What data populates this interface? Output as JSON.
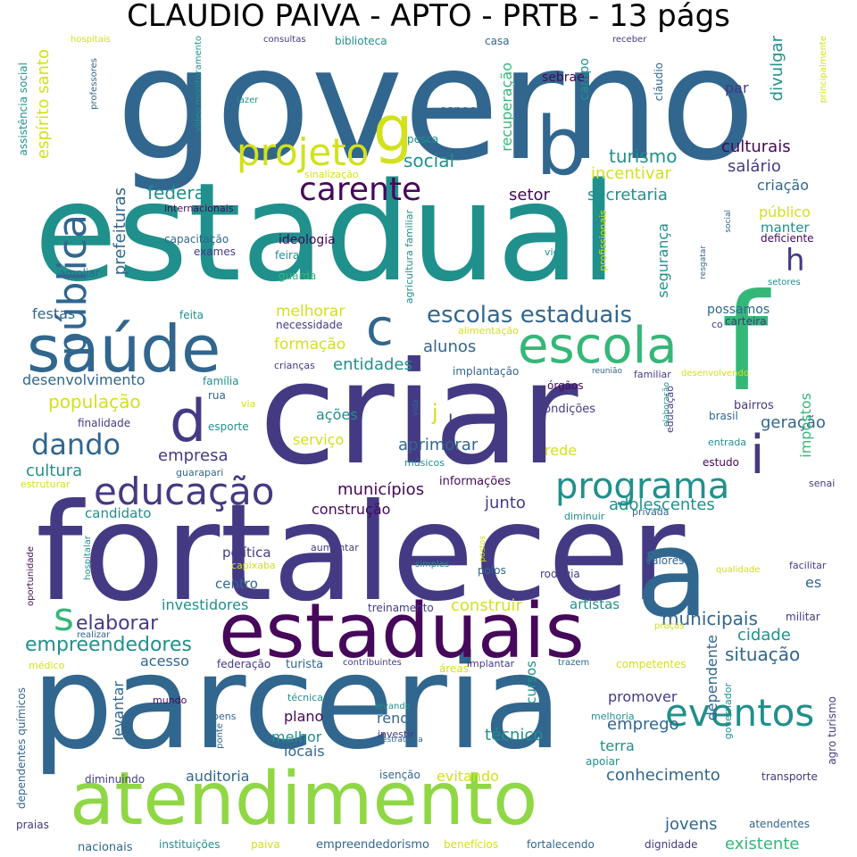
{
  "title": "CLAUDIO PAIVA - APTO - PRTB - 13 págs",
  "palette": {
    "purple": "#46085a",
    "indigo": "#443a84",
    "blue": "#31668e",
    "teal": "#20908c",
    "green": "#35b778",
    "lime": "#8fd744",
    "yellow": "#d2e11b"
  },
  "words": [
    {
      "text": "governo",
      "color": "#31668e"
    },
    {
      "text": "estadual",
      "color": "#20908c"
    },
    {
      "text": "criar",
      "color": "#443a84"
    },
    {
      "text": "fortalecer",
      "color": "#443a84"
    },
    {
      "text": "parceria",
      "color": "#31668e"
    },
    {
      "text": "estaduais",
      "color": "#46085a"
    },
    {
      "text": "atendimento",
      "color": "#8fd744"
    },
    {
      "text": "saúde",
      "color": "#31668e"
    },
    {
      "text": "escola",
      "color": "#35b778"
    },
    {
      "text": "f",
      "color": "#35b778"
    },
    {
      "text": "b",
      "color": "#31668e"
    },
    {
      "text": "g",
      "color": "#d2e11b"
    },
    {
      "text": "projeto",
      "color": "#d2e11b"
    },
    {
      "text": "pública",
      "color": "#31668e"
    },
    {
      "text": "carente",
      "color": "#46085a"
    },
    {
      "text": "educação",
      "color": "#443a84"
    },
    {
      "text": "programa",
      "color": "#20908c"
    },
    {
      "text": "d",
      "color": "#443a84"
    },
    {
      "text": "c",
      "color": "#31668e"
    },
    {
      "text": "s",
      "color": "#35b778"
    },
    {
      "text": "i",
      "color": "#443a84"
    },
    {
      "text": "h",
      "color": "#443a84"
    },
    {
      "text": "dando",
      "color": "#31668e"
    },
    {
      "text": "eventos",
      "color": "#20908c"
    },
    {
      "text": "escolas estaduais",
      "color": "#31668e"
    },
    {
      "text": "elaborar",
      "color": "#443a84"
    },
    {
      "text": "empreendedores",
      "color": "#20908c"
    },
    {
      "text": "turismo",
      "color": "#20908c"
    },
    {
      "text": "social",
      "color": "#20908c"
    },
    {
      "text": "recuperação",
      "color": "#35b778"
    },
    {
      "text": "divulgar",
      "color": "#20908c"
    },
    {
      "text": "culturais",
      "color": "#46085a"
    },
    {
      "text": "incentivar",
      "color": "#d2e11b"
    },
    {
      "text": "salário",
      "color": "#443a84"
    },
    {
      "text": "criação",
      "color": "#31668e"
    },
    {
      "text": "público",
      "color": "#d2e11b"
    },
    {
      "text": "manter",
      "color": "#20908c"
    },
    {
      "text": "deficiente",
      "color": "#46085a"
    },
    {
      "text": "federal",
      "color": "#20908c"
    },
    {
      "text": "setor",
      "color": "#46085a"
    },
    {
      "text": "secretaria",
      "color": "#20908c"
    },
    {
      "text": "segurança",
      "color": "#20908c"
    },
    {
      "text": "espírito santo",
      "color": "#d2e11b"
    },
    {
      "text": "prefeituras",
      "color": "#31668e"
    },
    {
      "text": "festas",
      "color": "#31668e"
    },
    {
      "text": "melhorar",
      "color": "#d2e11b"
    },
    {
      "text": "formação",
      "color": "#d2e11b"
    },
    {
      "text": "alunos",
      "color": "#31668e"
    },
    {
      "text": "entidades",
      "color": "#20908c"
    },
    {
      "text": "desenvolvimento",
      "color": "#31668e"
    },
    {
      "text": "população",
      "color": "#d2e11b"
    },
    {
      "text": "ações",
      "color": "#20908c"
    },
    {
      "text": "serviço",
      "color": "#d2e11b"
    },
    {
      "text": "aprimorar",
      "color": "#31668e"
    },
    {
      "text": "empresa",
      "color": "#443a84"
    },
    {
      "text": "cultura",
      "color": "#20908c"
    },
    {
      "text": "municípios",
      "color": "#46085a"
    },
    {
      "text": "junto",
      "color": "#443a84"
    },
    {
      "text": "construção",
      "color": "#46085a"
    },
    {
      "text": "candidato",
      "color": "#20908c"
    },
    {
      "text": "adolescentes",
      "color": "#20908c"
    },
    {
      "text": "geração",
      "color": "#31668e"
    },
    {
      "text": "impostos",
      "color": "#35b778"
    },
    {
      "text": "rede",
      "color": "#d2e11b"
    },
    {
      "text": "política",
      "color": "#443a84"
    },
    {
      "text": "centro",
      "color": "#31668e"
    },
    {
      "text": "investidores",
      "color": "#20908c"
    },
    {
      "text": "construir",
      "color": "#d2e11b"
    },
    {
      "text": "artistas",
      "color": "#20908c"
    },
    {
      "text": "municipais",
      "color": "#31668e"
    },
    {
      "text": "cidade",
      "color": "#20908c"
    },
    {
      "text": "situação",
      "color": "#31668e"
    },
    {
      "text": "acesso",
      "color": "#31668e"
    },
    {
      "text": "levantar",
      "color": "#31668e"
    },
    {
      "text": "cursos",
      "color": "#20908c"
    },
    {
      "text": "dependente",
      "color": "#31668e"
    },
    {
      "text": "promover",
      "color": "#443a84"
    },
    {
      "text": "plano",
      "color": "#46085a"
    },
    {
      "text": "renda",
      "color": "#31668e"
    },
    {
      "text": "emprego",
      "color": "#31668e"
    },
    {
      "text": "melhor",
      "color": "#20908c"
    },
    {
      "text": "locais",
      "color": "#31668e"
    },
    {
      "text": "técnico",
      "color": "#20908c"
    },
    {
      "text": "terra",
      "color": "#20908c"
    },
    {
      "text": "auditoria",
      "color": "#31668e"
    },
    {
      "text": "evitando",
      "color": "#d2e11b"
    },
    {
      "text": "conhecimento",
      "color": "#31668e"
    },
    {
      "text": "jovens",
      "color": "#31668e"
    },
    {
      "text": "existente",
      "color": "#35b778"
    },
    {
      "text": "es",
      "color": "#31668e"
    },
    {
      "text": "possamos",
      "color": "#31668e"
    },
    {
      "text": "par",
      "color": "#443a84"
    },
    {
      "text": "campo",
      "color": "#20908c"
    },
    {
      "text": "especial",
      "color": "#31668e"
    },
    {
      "text": "sebrae",
      "color": "#46085a"
    },
    {
      "text": "cláudio",
      "color": "#31668e"
    },
    {
      "text": "ideologia",
      "color": "#46085a"
    },
    {
      "text": "capacitação",
      "color": "#31668e"
    },
    {
      "text": "exames",
      "color": "#443a84"
    },
    {
      "text": "feiras",
      "color": "#20908c"
    },
    {
      "text": "guarda",
      "color": "#35b778"
    },
    {
      "text": "internacionais",
      "color": "#46085a"
    },
    {
      "text": "ampliar",
      "color": "#31668e"
    },
    {
      "text": "j",
      "color": "#d2e11b"
    },
    {
      "text": "k",
      "color": "#443a84"
    },
    {
      "text": "bairros",
      "color": "#443a84"
    },
    {
      "text": "brasil",
      "color": "#31668e"
    },
    {
      "text": "entrada",
      "color": "#20908c"
    },
    {
      "text": "estudo",
      "color": "#46085a"
    },
    {
      "text": "carteira",
      "color": "#443a84"
    },
    {
      "text": "condições",
      "color": "#443a84"
    },
    {
      "text": "informações",
      "color": "#46085a"
    },
    {
      "text": "músicos",
      "color": "#20908c"
    },
    {
      "text": "implantação",
      "color": "#31668e"
    },
    {
      "text": "órgãos",
      "color": "#46085a"
    },
    {
      "text": "família",
      "color": "#20908c"
    },
    {
      "text": "rua",
      "color": "#31668e"
    },
    {
      "text": "via",
      "color": "#d2e11b"
    },
    {
      "text": "esporte",
      "color": "#20908c"
    },
    {
      "text": "finalidade",
      "color": "#443a84"
    },
    {
      "text": "guarapari",
      "color": "#31668e"
    },
    {
      "text": "estruturar",
      "color": "#d2e11b"
    },
    {
      "text": "feita",
      "color": "#20908c"
    },
    {
      "text": "necessidade",
      "color": "#443a84"
    },
    {
      "text": "crianças",
      "color": "#443a84"
    },
    {
      "text": "alimentação",
      "color": "#d2e11b"
    },
    {
      "text": "agricultura familiar",
      "color": "#20908c"
    },
    {
      "text": "profissionais",
      "color": "#d2e11b"
    },
    {
      "text": "vice",
      "color": "#20908c"
    },
    {
      "text": "resgatar",
      "color": "#31668e"
    },
    {
      "text": "social",
      "color": "#31668e"
    },
    {
      "text": "setores",
      "color": "#20908c"
    },
    {
      "text": "co",
      "color": "#443a84"
    },
    {
      "text": "reunião",
      "color": "#31668e"
    },
    {
      "text": "familiar",
      "color": "#443a84"
    },
    {
      "text": "desenvolvendo",
      "color": "#d2e11b"
    },
    {
      "text": "elaboração",
      "color": "#20908c"
    },
    {
      "text": "educação",
      "color": "#443a84"
    },
    {
      "text": "vida",
      "color": "#31668e"
    },
    {
      "text": "diminuir",
      "color": "#20908c"
    },
    {
      "text": "privada",
      "color": "#31668e"
    },
    {
      "text": "capixaba",
      "color": "#d2e11b"
    },
    {
      "text": "aumentar",
      "color": "#443a84"
    },
    {
      "text": "simples",
      "color": "#20908c"
    },
    {
      "text": "polos",
      "color": "#31668e"
    },
    {
      "text": "rodovia",
      "color": "#443a84"
    },
    {
      "text": "valores",
      "color": "#31668e"
    },
    {
      "text": "qualidade",
      "color": "#d2e11b"
    },
    {
      "text": "facilitar",
      "color": "#443a84"
    },
    {
      "text": "postos",
      "color": "#d2e11b"
    },
    {
      "text": "hospitalar",
      "color": "#20908c"
    },
    {
      "text": "oportunidade",
      "color": "#46085a"
    },
    {
      "text": "praças",
      "color": "#d2e11b"
    },
    {
      "text": "militar",
      "color": "#443a84"
    },
    {
      "text": "treinamento",
      "color": "#443a84"
    },
    {
      "text": "realizar",
      "color": "#31668e"
    },
    {
      "text": "médico",
      "color": "#d2e11b"
    },
    {
      "text": "federação",
      "color": "#443a84"
    },
    {
      "text": "turista",
      "color": "#31668e"
    },
    {
      "text": "contribuintes",
      "color": "#443a84"
    },
    {
      "text": "áreas",
      "color": "#d2e11b"
    },
    {
      "text": "implantar",
      "color": "#443a84"
    },
    {
      "text": "trazem",
      "color": "#31668e"
    },
    {
      "text": "competentes",
      "color": "#d2e11b"
    },
    {
      "text": "técnica",
      "color": "#20908c"
    },
    {
      "text": "mundo",
      "color": "#46085a"
    },
    {
      "text": "bens",
      "color": "#31668e"
    },
    {
      "text": "ponte",
      "color": "#31668e"
    },
    {
      "text": "levando",
      "color": "#20908c"
    },
    {
      "text": "investir",
      "color": "#443a84"
    },
    {
      "text": "estratégia",
      "color": "#31668e"
    },
    {
      "text": "melhoria",
      "color": "#20908c"
    },
    {
      "text": "governador",
      "color": "#20908c"
    },
    {
      "text": "agro turismo",
      "color": "#443a84"
    },
    {
      "text": "apoiar",
      "color": "#20908c"
    },
    {
      "text": "transporte",
      "color": "#443a84"
    },
    {
      "text": "dependentes químicos",
      "color": "#31668e"
    },
    {
      "text": "diminuindo",
      "color": "#443a84"
    },
    {
      "text": "isenção",
      "color": "#31668e"
    },
    {
      "text": "praias",
      "color": "#443a84"
    },
    {
      "text": "nacionais",
      "color": "#31668e"
    },
    {
      "text": "instituições",
      "color": "#20908c"
    },
    {
      "text": "paiva",
      "color": "#d2e11b"
    },
    {
      "text": "empreendedorismo",
      "color": "#31668e"
    },
    {
      "text": "benefícios",
      "color": "#d2e11b"
    },
    {
      "text": "fortalecendo",
      "color": "#31668e"
    },
    {
      "text": "dignidade",
      "color": "#443a84"
    },
    {
      "text": "atendentes",
      "color": "#31668e"
    },
    {
      "text": "senai",
      "color": "#443a84"
    },
    {
      "text": "hospitais",
      "color": "#d2e11b"
    },
    {
      "text": "consultas",
      "color": "#443a84"
    },
    {
      "text": "biblioteca",
      "color": "#20908c"
    },
    {
      "text": "casa",
      "color": "#31668e"
    },
    {
      "text": "receber",
      "color": "#443a84"
    },
    {
      "text": "principalmente",
      "color": "#d2e11b"
    },
    {
      "text": "assistência social",
      "color": "#20908c"
    },
    {
      "text": "professores",
      "color": "#31668e"
    },
    {
      "text": "vídeo monitoramento",
      "color": "#20908c"
    },
    {
      "text": "lazer",
      "color": "#20908c"
    },
    {
      "text": "pesca",
      "color": "#20908c"
    },
    {
      "text": "sinalização",
      "color": "#d2e11b"
    },
    {
      "text": "a",
      "color": "#31668e"
    }
  ]
}
